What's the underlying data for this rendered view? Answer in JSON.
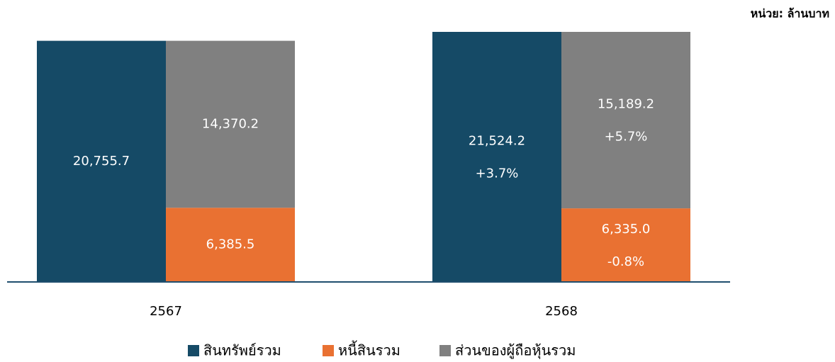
{
  "chart_data": {
    "type": "grouped-stacked-bar",
    "unit": "หน่วย: ล้านบาท",
    "categories": [
      "2567",
      "2568"
    ],
    "series": [
      {
        "name": "สินทรัพย์รวม",
        "color": "#154a66",
        "stack": 0,
        "values": [
          20755.7,
          21524.2
        ],
        "value_labels": [
          "20,755.7",
          "21,524.2"
        ],
        "changes": [
          null,
          3.7
        ],
        "change_labels": [
          null,
          "+3.7%"
        ]
      },
      {
        "name": "หนี้สินรวม",
        "color": "#e97132",
        "stack": 1,
        "values": [
          6385.5,
          6335.0
        ],
        "value_labels": [
          "6,385.5",
          "6,335.0"
        ],
        "changes": [
          null,
          -0.8
        ],
        "change_labels": [
          null,
          "-0.8%"
        ]
      },
      {
        "name": "ส่วนของผู้ถือหุ้นรวม",
        "color": "#808080",
        "stack": 1,
        "values": [
          14370.2,
          15189.2
        ],
        "value_labels": [
          "14,370.2",
          "15,189.2"
        ],
        "changes": [
          null,
          5.7
        ],
        "change_labels": [
          null,
          "+5.7%"
        ]
      }
    ]
  }
}
